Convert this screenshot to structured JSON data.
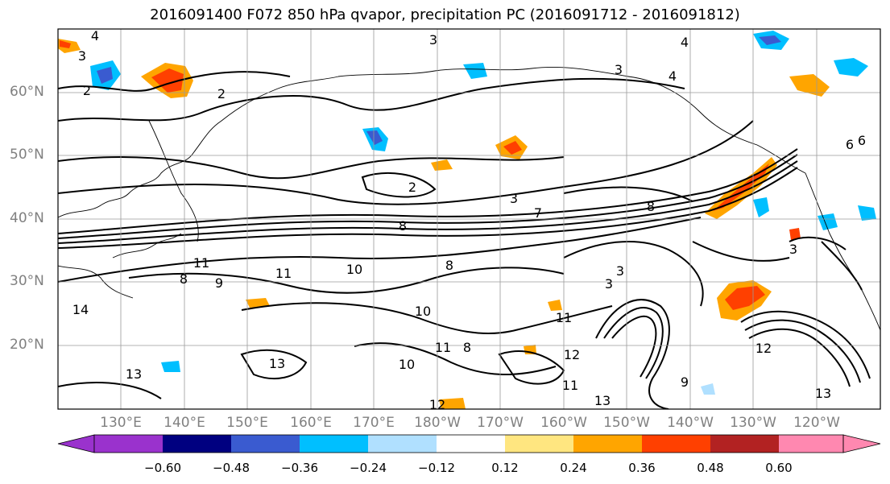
{
  "title": "2016091400 F072 850 hPa qvapor, precipitation PC (2016091712 - 2016091812)",
  "lat_labels": [
    "60°N",
    "50°N",
    "40°N",
    "30°N",
    "20°N"
  ],
  "lon_labels": [
    "130°E",
    "140°E",
    "150°E",
    "160°E",
    "170°E",
    "180°W",
    "170°W",
    "160°W",
    "150°W",
    "140°W",
    "130°W",
    "120°W"
  ],
  "colorbar": {
    "colors": [
      "#9a32cd",
      "#000080",
      "#3a5bd0",
      "#00bfff",
      "#b0e0ff",
      "#ffffff",
      "#ffe680",
      "#ffa500",
      "#ff4000",
      "#b22222",
      "#ff88b0"
    ],
    "tick_labels": [
      "−0.60",
      "−0.48",
      "−0.36",
      "−0.24",
      "−0.12",
      "0.12",
      "0.24",
      "0.36",
      "0.48",
      "0.60"
    ]
  },
  "contour_labels": [
    "4",
    "3",
    "3",
    "2",
    "2",
    "3",
    "4",
    "4",
    "2",
    "3",
    "8",
    "11",
    "10",
    "8",
    "8",
    "9",
    "11",
    "10",
    "14",
    "11",
    "10",
    "11",
    "8",
    "13",
    "12",
    "13",
    "12",
    "11",
    "13",
    "3",
    "3",
    "9",
    "13",
    "12",
    "6",
    "6",
    "3",
    "8",
    "7"
  ]
}
